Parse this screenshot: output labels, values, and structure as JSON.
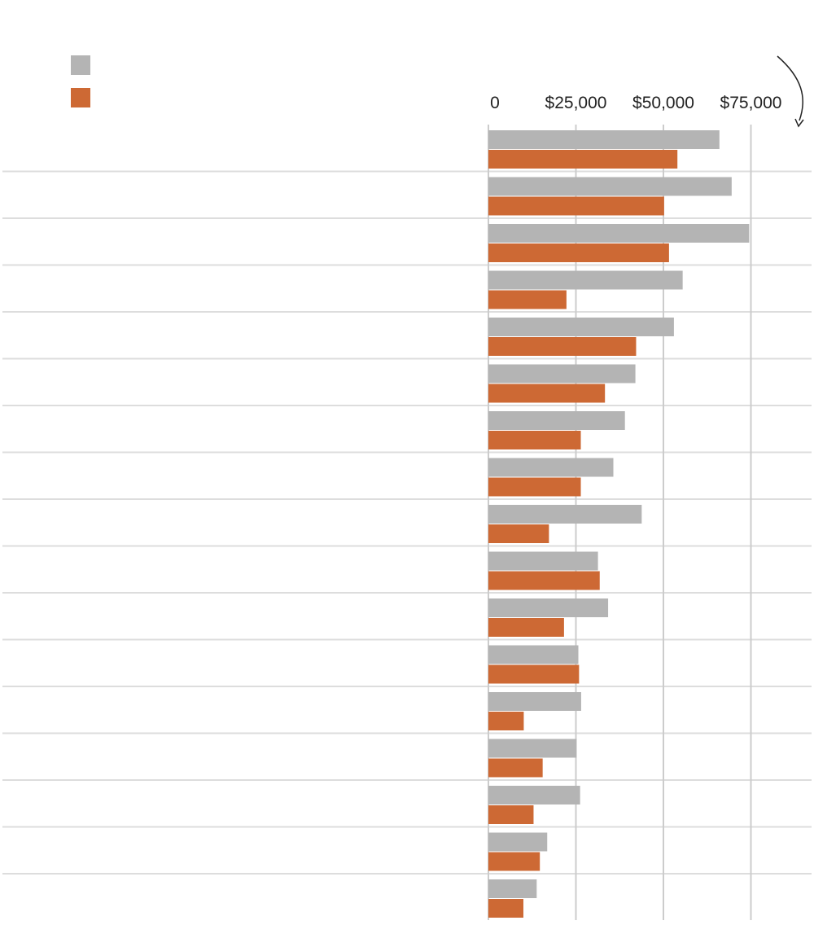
{
  "chart_data": {
    "type": "bar",
    "orientation": "horizontal",
    "title": "",
    "xlabel": "",
    "ylabel": "",
    "xlim": [
      0,
      92500
    ],
    "grid": true,
    "legend_placement": "top-left",
    "x_ticks": [
      {
        "value": 0,
        "label": "0"
      },
      {
        "value": 25000,
        "label": "$25,000"
      },
      {
        "value": 50000,
        "label": "$50,000"
      },
      {
        "value": 75000,
        "label": "$75,000"
      }
    ],
    "categories": [
      "",
      "",
      "",
      "",
      "",
      "",
      "",
      "",
      "",
      "",
      "",
      "",
      "",
      "",
      "",
      "",
      ""
    ],
    "series": [
      {
        "color": "#b4b4b4",
        "values": [
          66000,
          69500,
          74500,
          55500,
          53000,
          42000,
          39000,
          35700,
          43800,
          31300,
          34200,
          25700,
          26500,
          25200,
          26200,
          16800,
          13800
        ]
      },
      {
        "color": "#cd6934",
        "values": [
          54000,
          50200,
          51600,
          22300,
          42200,
          33300,
          26400,
          26400,
          17300,
          31800,
          21600,
          25900,
          10100,
          15500,
          12900,
          14700,
          10000
        ]
      }
    ],
    "colors": {
      "gridline": "#cccccc",
      "row_separator": "#dddddd",
      "annotation_arrow": "#222222"
    }
  }
}
